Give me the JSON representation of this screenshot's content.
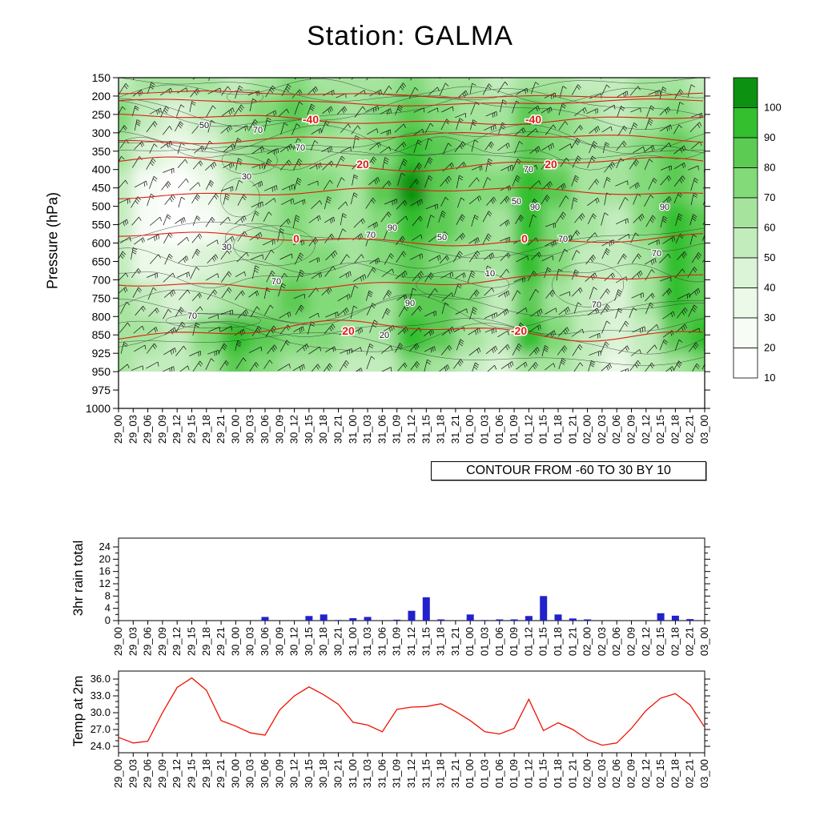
{
  "chart_data": {
    "station_title": "Station: GALMA",
    "x_labels": [
      "29_00",
      "29_03",
      "29_06",
      "29_09",
      "29_12",
      "29_15",
      "29_18",
      "29_21",
      "30_00",
      "30_03",
      "30_06",
      "30_09",
      "30_12",
      "30_15",
      "30_18",
      "30_21",
      "31_00",
      "31_03",
      "31_06",
      "31_09",
      "31_12",
      "31_15",
      "31_18",
      "31_21",
      "01_00",
      "01_03",
      "01_06",
      "01_09",
      "01_12",
      "01_15",
      "01_18",
      "01_21",
      "02_00",
      "02_03",
      "02_06",
      "02_09",
      "02_12",
      "02_15",
      "02_18",
      "02_21",
      "03_00"
    ],
    "panels": [
      {
        "id": "cross_section",
        "type": "heatmap",
        "ylabel": "Pressure (hPa)",
        "yticks": [
          150,
          200,
          250,
          300,
          350,
          400,
          450,
          500,
          550,
          600,
          650,
          700,
          750,
          800,
          850,
          925,
          950,
          975,
          1000
        ],
        "contour_note": "CONTOUR FROM -60 TO 30 BY 10",
        "overlays": [
          "wind-barbs",
          "black-humidity-contours",
          "red-temperature-contours"
        ],
        "colorbar": {
          "labels": [
            100,
            90,
            80,
            70,
            60,
            50,
            40,
            30,
            20,
            10
          ],
          "colors": [
            "#0c9210",
            "#33bf2e",
            "#5ccb53",
            "#82da79",
            "#a6e49e",
            "#c3ecbd",
            "#dbf3d6",
            "#ecf9e9",
            "#f7fcf5",
            "#ffffff"
          ]
        },
        "red_contour_color": "#dd2010",
        "red_contours": [
          {
            "y": 118,
            "amp": 3,
            "labels": []
          },
          {
            "y": 128,
            "amp": 3,
            "labels": []
          },
          {
            "y": 149,
            "amp": 5,
            "labels": [
              {
                "t": "-40",
                "x": 388
              },
              {
                "t": "-40",
                "x": 666
              }
            ]
          },
          {
            "y": 173,
            "amp": 5,
            "labels": []
          },
          {
            "y": 205,
            "amp": 6,
            "labels": [
              {
                "t": "20",
                "x": 453
              },
              {
                "t": "20",
                "x": 688
              }
            ]
          },
          {
            "y": 241,
            "amp": 5,
            "labels": []
          },
          {
            "y": 298,
            "amp": 6,
            "labels": [
              {
                "t": "0",
                "x": 370
              },
              {
                "t": "0",
                "x": 655
              }
            ]
          },
          {
            "y": 352,
            "amp": 7,
            "labels": []
          },
          {
            "y": 413,
            "amp": 9,
            "labels": [
              {
                "t": "20",
                "x": 435
              },
              {
                "t": "-20",
                "x": 648
              }
            ]
          }
        ],
        "black_contour_labels": [
          {
            "t": "50",
            "x": 255,
            "y": 160
          },
          {
            "t": "70",
            "x": 322,
            "y": 166
          },
          {
            "t": "70",
            "x": 375,
            "y": 188
          },
          {
            "t": "30",
            "x": 308,
            "y": 224
          },
          {
            "t": "70",
            "x": 660,
            "y": 215
          },
          {
            "t": "50",
            "x": 645,
            "y": 255
          },
          {
            "t": "90",
            "x": 668,
            "y": 262
          },
          {
            "t": "90",
            "x": 490,
            "y": 288
          },
          {
            "t": "70",
            "x": 463,
            "y": 297
          },
          {
            "t": "50",
            "x": 552,
            "y": 300
          },
          {
            "t": "70",
            "x": 703,
            "y": 302
          },
          {
            "t": "30",
            "x": 283,
            "y": 312
          },
          {
            "t": "70",
            "x": 345,
            "y": 355
          },
          {
            "t": "10",
            "x": 612,
            "y": 345
          },
          {
            "t": "70",
            "x": 240,
            "y": 398
          },
          {
            "t": "90",
            "x": 512,
            "y": 382
          },
          {
            "t": "70",
            "x": 745,
            "y": 384
          },
          {
            "t": "20",
            "x": 480,
            "y": 422
          },
          {
            "t": "90",
            "x": 830,
            "y": 262
          },
          {
            "t": "70",
            "x": 820,
            "y": 320
          }
        ],
        "shading_grid": {
          "time_step": 2,
          "pressures": [
            150,
            250,
            350,
            450,
            550,
            650,
            750,
            850,
            950
          ],
          "values": [
            [
              50,
              55,
              60,
              55,
              50,
              60,
              65,
              60,
              55,
              60,
              70,
              60,
              55,
              50,
              60,
              55,
              50,
              45,
              55,
              60,
              50
            ],
            [
              70,
              50,
              40,
              45,
              55,
              70,
              75,
              65,
              60,
              65,
              80,
              70,
              60,
              55,
              75,
              65,
              55,
              50,
              60,
              70,
              60
            ],
            [
              60,
              35,
              25,
              40,
              55,
              65,
              70,
              60,
              55,
              70,
              85,
              75,
              65,
              60,
              82,
              70,
              60,
              55,
              65,
              75,
              65
            ],
            [
              50,
              20,
              10,
              25,
              45,
              60,
              70,
              65,
              60,
              75,
              96,
              80,
              70,
              65,
              92,
              75,
              60,
              55,
              70,
              82,
              70
            ],
            [
              45,
              15,
              10,
              20,
              40,
              55,
              65,
              60,
              55,
              70,
              85,
              75,
              65,
              60,
              92,
              70,
              55,
              50,
              65,
              88,
              78
            ],
            [
              50,
              30,
              25,
              35,
              50,
              60,
              70,
              65,
              60,
              65,
              80,
              70,
              60,
              55,
              86,
              65,
              50,
              45,
              60,
              92,
              82
            ],
            [
              55,
              45,
              40,
              50,
              60,
              65,
              75,
              70,
              65,
              60,
              75,
              80,
              65,
              50,
              82,
              60,
              45,
              40,
              55,
              86,
              76
            ],
            [
              60,
              55,
              50,
              70,
              86,
              80,
              70,
              65,
              60,
              55,
              90,
              75,
              60,
              45,
              85,
              70,
              50,
              35,
              50,
              80,
              86
            ],
            [
              55,
              50,
              45,
              60,
              75,
              70,
              60,
              55,
              50,
              45,
              70,
              60,
              50,
              40,
              60,
              55,
              45,
              30,
              45,
              60,
              65
            ]
          ]
        }
      },
      {
        "id": "rain",
        "type": "bar",
        "ylabel": "3hr rain total",
        "yticks": [
          0,
          4,
          8,
          12,
          16,
          20,
          24
        ],
        "ylim": [
          0,
          26
        ],
        "bar_color": "#2222cc",
        "values": [
          0,
          0,
          0,
          0,
          0,
          0,
          0,
          0,
          0,
          0,
          1.2,
          0,
          0,
          1.5,
          2.0,
          0.2,
          0.8,
          1.2,
          0,
          0.3,
          3.2,
          7.6,
          0.4,
          0,
          2.0,
          0.2,
          0.4,
          0.4,
          1.5,
          8.0,
          2.0,
          0.7,
          0.4,
          0,
          0,
          0,
          0,
          2.4,
          1.6,
          0.5,
          0
        ]
      },
      {
        "id": "temp",
        "type": "line",
        "ylabel": "Temp at 2m",
        "ytick_labels": [
          "24.0",
          "27.0",
          "30.0",
          "33.0",
          "36.0"
        ],
        "ylim": [
          23.5,
          37
        ],
        "line_color": "#ee1100",
        "values": [
          25.6,
          24.6,
          24.9,
          30.0,
          34.5,
          36.2,
          34.0,
          28.6,
          27.6,
          26.4,
          26.0,
          30.5,
          33.0,
          34.6,
          33.2,
          31.5,
          28.3,
          27.8,
          26.6,
          30.6,
          31.0,
          31.1,
          31.6,
          30.2,
          28.6,
          26.6,
          26.2,
          27.2,
          32.4,
          26.8,
          28.2,
          27.0,
          25.2,
          24.2,
          24.6,
          27.2,
          30.4,
          32.6,
          33.4,
          31.4,
          27.4
        ]
      }
    ]
  }
}
